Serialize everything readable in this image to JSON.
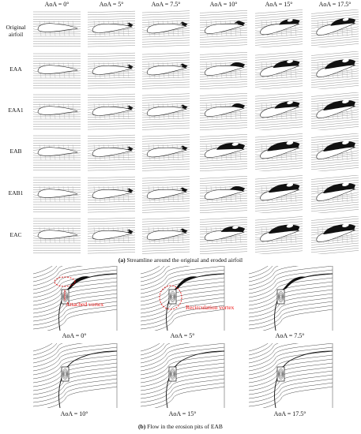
{
  "panel_a": {
    "column_headers": [
      "AoA = 0°",
      "AoA = 5°",
      "AoA = 7.5°",
      "AoA = 10°",
      "AoA = 15°",
      "AoA = 17.5°"
    ],
    "row_labels": [
      "Original airfoil",
      "EAA",
      "EAA1",
      "EAB",
      "EAB1",
      "EAC"
    ],
    "caption_letter": "(a)",
    "caption_text": " Streamline around the original and eroded airfoil",
    "vortex_size": [
      [
        0,
        0.05,
        0.1,
        0.2,
        0.55,
        0.7
      ],
      [
        0,
        0.05,
        0.1,
        0.35,
        0.75,
        0.9
      ],
      [
        0,
        0.05,
        0.08,
        0.3,
        0.7,
        0.95
      ],
      [
        0,
        0.05,
        0.08,
        0.8,
        0.95,
        0.95
      ],
      [
        0,
        0.05,
        0.1,
        0.35,
        0.9,
        0.95
      ],
      [
        0,
        0.05,
        0.1,
        0.65,
        0.9,
        0.95
      ]
    ]
  },
  "panel_b": {
    "labels": [
      "AoA = 0°",
      "AoA = 5°",
      "AoA = 7.5°",
      "AoA = 10°",
      "AoA = 15°",
      "AoA = 17.5°"
    ],
    "annotation_attached": "Attached vortex",
    "annotation_recirculation": "Recirculation vortex",
    "annotation_color": "#e11010",
    "caption_letter": "(b)",
    "caption_text": " Flow in the erosion pits of EAB"
  }
}
